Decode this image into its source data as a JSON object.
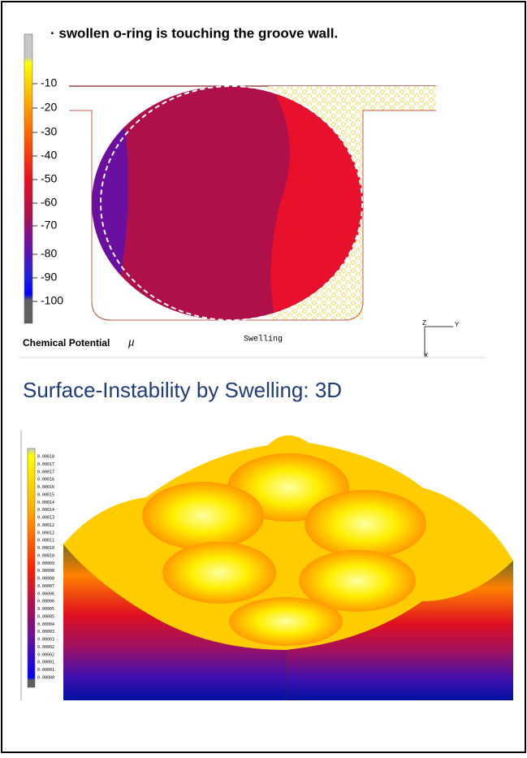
{
  "bullet_text": "· swollen o-ring is touching the groove wall.",
  "figure1": {
    "legend_labels": [
      "-10",
      "-20",
      "-30",
      "-40",
      "-50",
      "-60",
      "-70",
      "-80",
      "-90",
      "-100"
    ],
    "legend_title": "Chemical Potential",
    "legend_symbol": "μ",
    "caption": "Swelling",
    "axes": [
      "Z",
      "Y",
      "X"
    ]
  },
  "title": "Surface-Instability by Swelling: 3D",
  "figure2": {
    "legend_labels": [
      "0.00018",
      "0.00017",
      "0.00017",
      "0.00016",
      "0.00016",
      "0.00015",
      "0.00014",
      "0.00014",
      "0.00013",
      "0.00012",
      "0.00012",
      "0.00011",
      "0.00010",
      "0.00010",
      "0.00009",
      "0.00008",
      "0.00008",
      "0.00007",
      "0.00006",
      "0.00006",
      "0.00005",
      "0.00005",
      "0.00004",
      "0.00003",
      "0.00003",
      "0.00002",
      "0.00002",
      "0.00001",
      "0.00001",
      "0.00000"
    ]
  }
}
